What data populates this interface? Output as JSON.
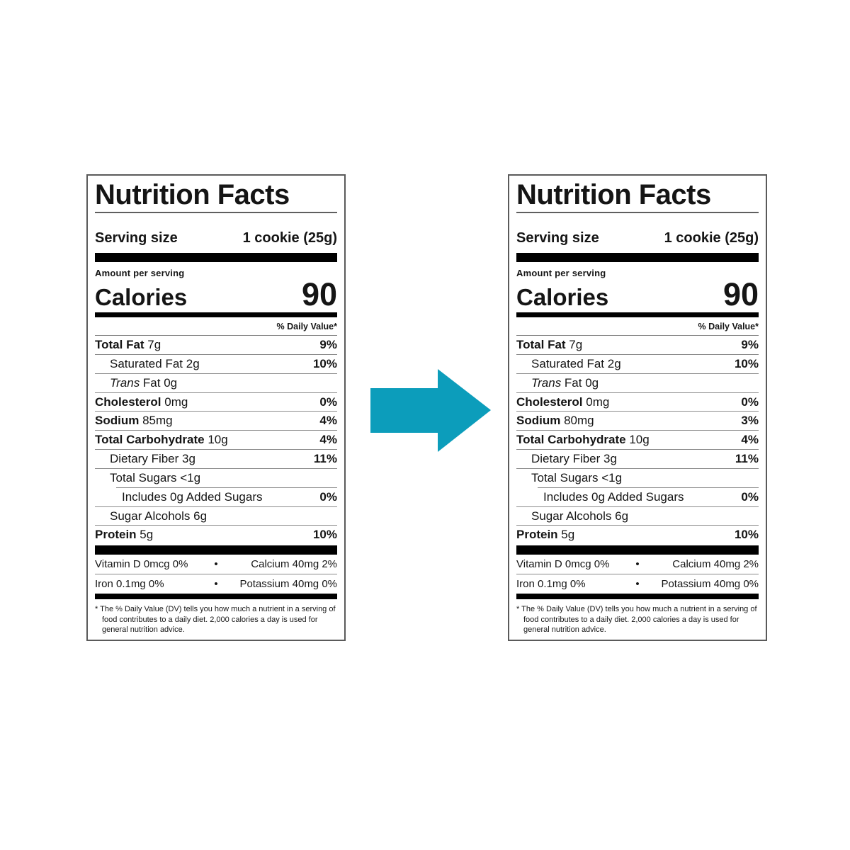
{
  "colors": {
    "arrow": "#0c9dbb"
  },
  "glyphs": {
    "bullet": "•"
  },
  "labels": [
    {
      "id": "left-label",
      "title": "Nutrition Facts",
      "serving_size_label": "Serving size",
      "serving_size_value": "1 cookie (25g)",
      "amount_per_serving": "Amount per serving",
      "calories_label": "Calories",
      "calories_value": "90",
      "daily_value_header": "% Daily Value*",
      "rows": [
        {
          "name": "Total Fat",
          "amount": "7g",
          "dv": "9%",
          "bold": true,
          "indent": 0
        },
        {
          "name": "Saturated Fat",
          "amount": "2g",
          "dv": "10%",
          "bold": false,
          "indent": 1
        },
        {
          "name": "Trans",
          "amount": "Fat 0g",
          "dv": "",
          "bold": false,
          "italic": true,
          "indent": 1
        },
        {
          "name": "Cholesterol",
          "amount": "0mg",
          "dv": "0%",
          "bold": true,
          "indent": 0
        },
        {
          "name": "Sodium",
          "amount": "85mg",
          "dv": "4%",
          "bold": true,
          "indent": 0
        },
        {
          "name": "Total Carbohydrate",
          "amount": "10g",
          "dv": "4%",
          "bold": true,
          "indent": 0
        },
        {
          "name": "Dietary Fiber",
          "amount": "3g",
          "dv": "11%",
          "bold": false,
          "indent": 1
        },
        {
          "name": "Total Sugars",
          "amount": "<1g",
          "dv": "",
          "bold": false,
          "indent": 1,
          "sep_indent": true
        },
        {
          "name": "Includes 0g Added Sugars",
          "amount": "",
          "dv": "0%",
          "bold": false,
          "indent": 2
        },
        {
          "name": "Sugar Alcohols",
          "amount": "6g",
          "dv": "",
          "bold": false,
          "indent": 1
        },
        {
          "name": "Protein",
          "amount": "5g",
          "dv": "10%",
          "bold": true,
          "indent": 0
        }
      ],
      "micronutrients": [
        {
          "left": "Vitamin D 0mcg 0%",
          "right": "Calcium 40mg 2%"
        },
        {
          "left": "Iron 0.1mg 0%",
          "right": "Potassium 40mg 0%"
        }
      ],
      "footnote": "* The % Daily Value (DV) tells you how much a nutrient in a serving of food contributes to a daily diet. 2,000 calories a day is used for general nutrition advice."
    },
    {
      "id": "right-label",
      "title": "Nutrition Facts",
      "serving_size_label": "Serving size",
      "serving_size_value": "1 cookie (25g)",
      "amount_per_serving": "Amount per serving",
      "calories_label": "Calories",
      "calories_value": "90",
      "daily_value_header": "% Daily Value*",
      "rows": [
        {
          "name": "Total Fat",
          "amount": "7g",
          "dv": "9%",
          "bold": true,
          "indent": 0
        },
        {
          "name": "Saturated Fat",
          "amount": "2g",
          "dv": "10%",
          "bold": false,
          "indent": 1
        },
        {
          "name": "Trans",
          "amount": "Fat 0g",
          "dv": "",
          "bold": false,
          "italic": true,
          "indent": 1
        },
        {
          "name": "Cholesterol",
          "amount": "0mg",
          "dv": "0%",
          "bold": true,
          "indent": 0
        },
        {
          "name": "Sodium",
          "amount": "80mg",
          "dv": "3%",
          "bold": true,
          "indent": 0
        },
        {
          "name": "Total Carbohydrate",
          "amount": "10g",
          "dv": "4%",
          "bold": true,
          "indent": 0
        },
        {
          "name": "Dietary Fiber",
          "amount": "3g",
          "dv": "11%",
          "bold": false,
          "indent": 1
        },
        {
          "name": "Total Sugars",
          "amount": "<1g",
          "dv": "",
          "bold": false,
          "indent": 1,
          "sep_indent": true
        },
        {
          "name": "Includes 0g Added Sugars",
          "amount": "",
          "dv": "0%",
          "bold": false,
          "indent": 2
        },
        {
          "name": "Sugar Alcohols",
          "amount": "6g",
          "dv": "",
          "bold": false,
          "indent": 1
        },
        {
          "name": "Protein",
          "amount": "5g",
          "dv": "10%",
          "bold": true,
          "indent": 0
        }
      ],
      "micronutrients": [
        {
          "left": "Vitamin D 0mcg 0%",
          "right": "Calcium 40mg 2%"
        },
        {
          "left": "Iron 0.1mg 0%",
          "right": "Potassium 40mg 0%"
        }
      ],
      "footnote": "* The % Daily Value (DV) tells you how much a nutrient in a serving of food contributes to a daily diet. 2,000 calories a day is used for general nutrition advice."
    }
  ]
}
